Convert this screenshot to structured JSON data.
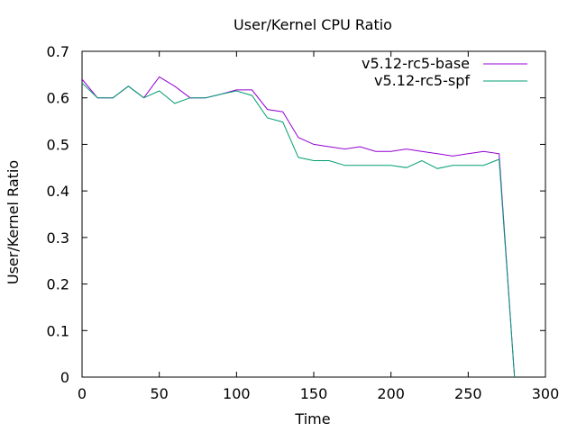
{
  "chart_data": {
    "type": "line",
    "title": "User/Kernel CPU Ratio",
    "xlabel": "Time",
    "ylabel": "User/Kernel Ratio",
    "xlim": [
      0,
      300
    ],
    "ylim": [
      0,
      0.7
    ],
    "xticks": [
      0,
      50,
      100,
      150,
      200,
      250,
      300
    ],
    "xtick_labels": [
      "0",
      "50",
      "100",
      "150",
      "200",
      "250",
      "300"
    ],
    "yticks": [
      0,
      0.1,
      0.2,
      0.3,
      0.4,
      0.5,
      0.6,
      0.7
    ],
    "ytick_labels": [
      "0",
      "0.1",
      "0.2",
      "0.3",
      "0.4",
      "0.5",
      "0.6",
      "0.7"
    ],
    "grid": false,
    "legend_position": "top-right",
    "series": [
      {
        "name": "v5.12-rc5-base",
        "color": "#9400d3",
        "x": [
          0,
          10,
          20,
          30,
          40,
          50,
          60,
          70,
          80,
          90,
          100,
          110,
          120,
          130,
          140,
          150,
          160,
          170,
          180,
          190,
          200,
          210,
          220,
          230,
          240,
          250,
          260,
          270,
          280
        ],
        "y": [
          0.64,
          0.6,
          0.6,
          0.625,
          0.6,
          0.645,
          0.625,
          0.6,
          0.6,
          0.608,
          0.617,
          0.617,
          0.575,
          0.57,
          0.515,
          0.5,
          0.495,
          0.49,
          0.495,
          0.485,
          0.485,
          0.49,
          0.485,
          0.48,
          0.475,
          0.48,
          0.485,
          0.48,
          0.0
        ]
      },
      {
        "name": "v5.12-rc5-spf",
        "color": "#009e73",
        "x": [
          0,
          10,
          20,
          30,
          40,
          50,
          60,
          70,
          80,
          90,
          100,
          110,
          120,
          130,
          140,
          150,
          160,
          170,
          180,
          190,
          200,
          210,
          220,
          230,
          240,
          250,
          260,
          270,
          280
        ],
        "y": [
          0.632,
          0.6,
          0.6,
          0.625,
          0.6,
          0.615,
          0.588,
          0.6,
          0.6,
          0.608,
          0.615,
          0.605,
          0.557,
          0.548,
          0.472,
          0.465,
          0.465,
          0.455,
          0.455,
          0.455,
          0.455,
          0.45,
          0.465,
          0.448,
          0.455,
          0.455,
          0.455,
          0.468,
          0.0
        ]
      }
    ]
  }
}
